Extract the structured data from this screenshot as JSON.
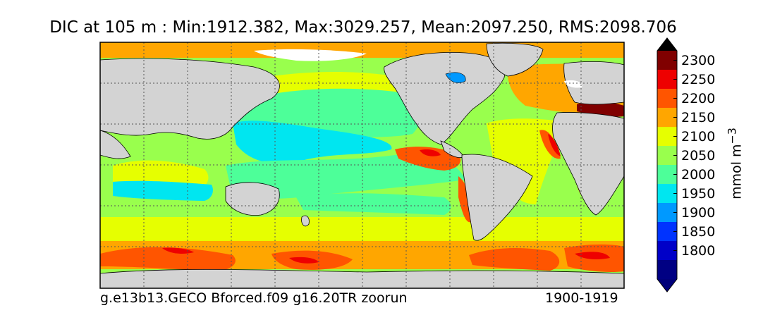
{
  "title": "DIC at 105 m : Min:1912.382, Max:3029.257, Mean:2097.250, RMS:2098.706",
  "caption_left": "g.e13b13.GECO Bforced.f09 g16.20TR zoorun",
  "caption_right": "1900-1919",
  "colorbar": {
    "unit_base": "mmol m",
    "unit_exp": "−3",
    "levels": [
      {
        "value": "1800",
        "color": "#0000c8"
      },
      {
        "value": "1850",
        "color": "#0033ff"
      },
      {
        "value": "1900",
        "color": "#0099ff"
      },
      {
        "value": "1950",
        "color": "#00e6f0"
      },
      {
        "value": "2000",
        "color": "#4dff99"
      },
      {
        "value": "2050",
        "color": "#99ff4d"
      },
      {
        "value": "2100",
        "color": "#e6ff00"
      },
      {
        "value": "2150",
        "color": "#ffa600"
      },
      {
        "value": "2200",
        "color": "#ff5500"
      },
      {
        "value": "2250",
        "color": "#ee0000"
      },
      {
        "value": "2300",
        "color": "#800000"
      }
    ],
    "under_color": "#00007a",
    "bottom_color": "#000083"
  },
  "map": {
    "land_color": "#d3d3d3",
    "ice_color": "#ffffff",
    "grid": "dotted"
  }
}
